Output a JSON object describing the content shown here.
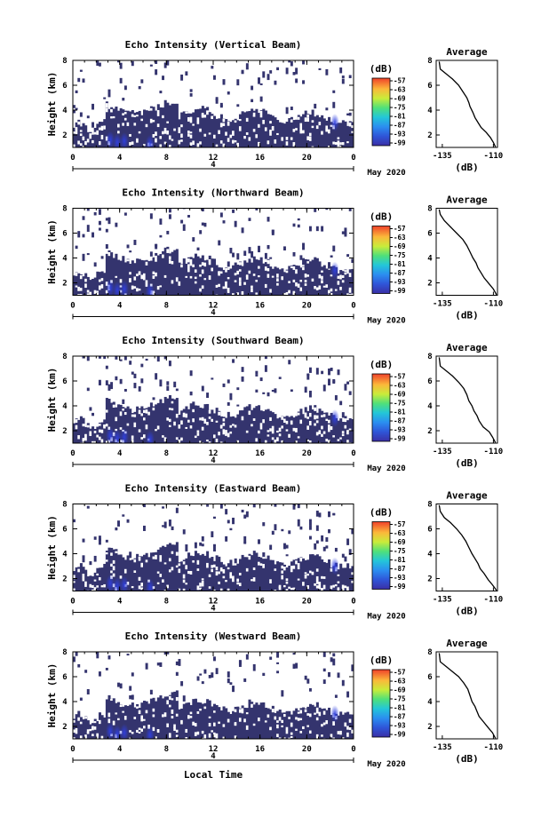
{
  "colors": {
    "background_echo": "#34346e",
    "scale_low": "#3a2fa6",
    "scale_high": "#f0412a",
    "gap": "#ffffff"
  },
  "chart_data": [
    {
      "type": "heatmap",
      "title": "Echo Intensity (Vertical Beam)",
      "ylabel": "Height (km)",
      "xlabel": "",
      "x_ticks": [
        "0",
        "4",
        "8",
        "12",
        "16",
        "20",
        "0"
      ],
      "y_ticks": [
        "2",
        "4",
        "6",
        "8"
      ],
      "xlim": [
        0,
        24
      ],
      "ylim": [
        1,
        8
      ],
      "date_marker": "4",
      "date_label": "May 2020",
      "colorbar": {
        "unit": "(dB)",
        "ticks": [
          "-57",
          "-63",
          "-69",
          "-75",
          "-81",
          "-87",
          "-93",
          "-99"
        ]
      },
      "profile": {
        "title": "Average",
        "xlabel": "(dB)",
        "x_ticks": [
          "-135",
          "-110"
        ],
        "y_ticks": [
          "2",
          "4",
          "6",
          "8"
        ],
        "xlim": [
          -138,
          -108
        ],
        "ylim": [
          1,
          8
        ],
        "points": [
          [
            -109,
            1.05
          ],
          [
            -110,
            1.4
          ],
          [
            -111.5,
            1.8
          ],
          [
            -113.5,
            2.2
          ],
          [
            -116,
            2.6
          ],
          [
            -117.5,
            3.0
          ],
          [
            -119,
            3.4
          ],
          [
            -120,
            3.8
          ],
          [
            -121.5,
            4.3
          ],
          [
            -122,
            4.6
          ],
          [
            -123,
            5.0
          ],
          [
            -125,
            5.5
          ],
          [
            -127,
            6.0
          ],
          [
            -130,
            6.5
          ],
          [
            -133,
            6.9
          ],
          [
            -136,
            7.3
          ],
          [
            -136.5,
            7.9
          ]
        ]
      }
    },
    {
      "type": "heatmap",
      "title": "Echo Intensity (Northward Beam)",
      "ylabel": "Height (km)",
      "xlabel": "",
      "x_ticks": [
        "0",
        "4",
        "8",
        "12",
        "16",
        "20",
        "0"
      ],
      "y_ticks": [
        "2",
        "4",
        "6",
        "8"
      ],
      "xlim": [
        0,
        24
      ],
      "ylim": [
        1,
        8
      ],
      "date_marker": "4",
      "date_label": "May 2020",
      "colorbar": {
        "unit": "(dB)",
        "ticks": [
          "-57",
          "-63",
          "-69",
          "-75",
          "-81",
          "-87",
          "-93",
          "-99"
        ]
      },
      "profile": {
        "title": "Average",
        "xlabel": "(dB)",
        "x_ticks": [
          "-135",
          "-110"
        ],
        "y_ticks": [
          "2",
          "4",
          "6",
          "8"
        ],
        "xlim": [
          -138,
          -108
        ],
        "ylim": [
          1,
          8
        ],
        "points": [
          [
            -108.5,
            1.05
          ],
          [
            -110,
            1.5
          ],
          [
            -112,
            1.9
          ],
          [
            -114.5,
            2.4
          ],
          [
            -116,
            2.8
          ],
          [
            -117.5,
            3.2
          ],
          [
            -118.5,
            3.6
          ],
          [
            -120,
            4.0
          ],
          [
            -121.5,
            4.5
          ],
          [
            -123,
            5.0
          ],
          [
            -125,
            5.5
          ],
          [
            -128,
            6.0
          ],
          [
            -131,
            6.5
          ],
          [
            -134,
            7.0
          ],
          [
            -136,
            7.5
          ],
          [
            -136.5,
            7.9
          ]
        ]
      }
    },
    {
      "type": "heatmap",
      "title": "Echo Intensity (Southward Beam)",
      "ylabel": "Height (km)",
      "xlabel": "",
      "x_ticks": [
        "0",
        "4",
        "8",
        "12",
        "16",
        "20",
        "0"
      ],
      "y_ticks": [
        "2",
        "4",
        "6",
        "8"
      ],
      "xlim": [
        0,
        24
      ],
      "ylim": [
        1,
        8
      ],
      "date_marker": "4",
      "date_label": "May 2020",
      "colorbar": {
        "unit": "(dB)",
        "ticks": [
          "-57",
          "-63",
          "-69",
          "-75",
          "-81",
          "-87",
          "-93",
          "-99"
        ]
      },
      "profile": {
        "title": "Average",
        "xlabel": "(dB)",
        "x_ticks": [
          "-135",
          "-110"
        ],
        "y_ticks": [
          "2",
          "4",
          "6",
          "8"
        ],
        "xlim": [
          -138,
          -108
        ],
        "ylim": [
          1,
          8
        ],
        "points": [
          [
            -109,
            1.05
          ],
          [
            -110.5,
            1.5
          ],
          [
            -112,
            1.9
          ],
          [
            -115,
            2.3
          ],
          [
            -117,
            2.8
          ],
          [
            -118,
            3.2
          ],
          [
            -119.5,
            3.6
          ],
          [
            -120.5,
            4.0
          ],
          [
            -122,
            4.4
          ],
          [
            -123,
            4.9
          ],
          [
            -124.5,
            5.4
          ],
          [
            -127,
            5.9
          ],
          [
            -130,
            6.4
          ],
          [
            -133,
            6.8
          ],
          [
            -136,
            7.2
          ],
          [
            -136.5,
            7.9
          ]
        ]
      }
    },
    {
      "type": "heatmap",
      "title": "Echo Intensity (Eastward Beam)",
      "ylabel": "Height (km)",
      "xlabel": "",
      "x_ticks": [
        "0",
        "4",
        "8",
        "12",
        "16",
        "20",
        "0"
      ],
      "y_ticks": [
        "2",
        "4",
        "6",
        "8"
      ],
      "xlim": [
        0,
        24
      ],
      "ylim": [
        1,
        8
      ],
      "date_marker": "4",
      "date_label": "May 2020",
      "colorbar": {
        "unit": "(dB)",
        "ticks": [
          "-57",
          "-63",
          "-69",
          "-75",
          "-81",
          "-87",
          "-93",
          "-99"
        ]
      },
      "profile": {
        "title": "Average",
        "xlabel": "(dB)",
        "x_ticks": [
          "-135",
          "-110"
        ],
        "y_ticks": [
          "2",
          "4",
          "6",
          "8"
        ],
        "xlim": [
          -138,
          -108
        ],
        "ylim": [
          1,
          8
        ],
        "points": [
          [
            -108.5,
            1.05
          ],
          [
            -110.5,
            1.5
          ],
          [
            -112.5,
            1.9
          ],
          [
            -114.5,
            2.4
          ],
          [
            -116.5,
            2.8
          ],
          [
            -117.5,
            3.2
          ],
          [
            -119,
            3.6
          ],
          [
            -120.5,
            4.0
          ],
          [
            -122,
            4.5
          ],
          [
            -123.5,
            5.0
          ],
          [
            -125.5,
            5.5
          ],
          [
            -128,
            6.0
          ],
          [
            -131,
            6.5
          ],
          [
            -134,
            6.9
          ],
          [
            -136,
            7.4
          ],
          [
            -136.5,
            7.9
          ]
        ]
      }
    },
    {
      "type": "heatmap",
      "title": "Echo Intensity (Westward Beam)",
      "ylabel": "Height (km)",
      "xlabel": "Local Time",
      "x_ticks": [
        "0",
        "4",
        "8",
        "12",
        "16",
        "20",
        "0"
      ],
      "y_ticks": [
        "2",
        "4",
        "6",
        "8"
      ],
      "xlim": [
        0,
        24
      ],
      "ylim": [
        1,
        8
      ],
      "date_marker": "4",
      "date_label": "May 2020",
      "colorbar": {
        "unit": "(dB)",
        "ticks": [
          "-57",
          "-63",
          "-69",
          "-75",
          "-81",
          "-87",
          "-93",
          "-99"
        ]
      },
      "profile": {
        "title": "Average",
        "xlabel": "(dB)",
        "x_ticks": [
          "-135",
          "-110"
        ],
        "y_ticks": [
          "2",
          "4",
          "6",
          "8"
        ],
        "xlim": [
          -138,
          -108
        ],
        "ylim": [
          1,
          8
        ],
        "points": [
          [
            -109,
            1.05
          ],
          [
            -110.5,
            1.5
          ],
          [
            -112.5,
            1.9
          ],
          [
            -115,
            2.4
          ],
          [
            -117,
            2.8
          ],
          [
            -118,
            3.2
          ],
          [
            -119,
            3.6
          ],
          [
            -120.5,
            4.0
          ],
          [
            -121.5,
            4.5
          ],
          [
            -122.5,
            5.0
          ],
          [
            -124.5,
            5.5
          ],
          [
            -127,
            6.0
          ],
          [
            -130,
            6.4
          ],
          [
            -133,
            6.8
          ],
          [
            -136,
            7.2
          ],
          [
            -136.5,
            7.9
          ]
        ]
      }
    }
  ]
}
